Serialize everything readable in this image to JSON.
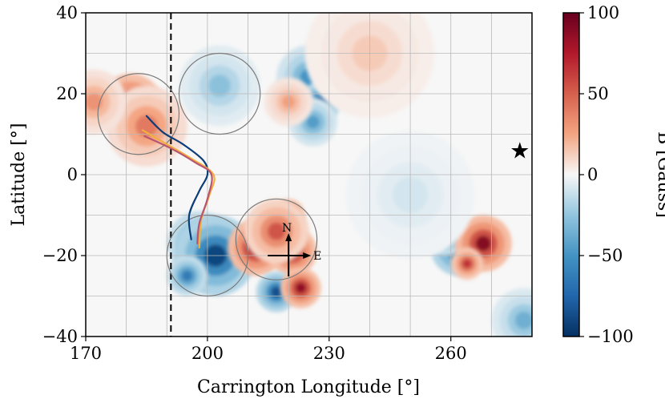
{
  "chart_data": {
    "type": "heatmap",
    "xlabel": "Carrington Longitude [°]",
    "ylabel": "Latitude [°]",
    "colorbar_label": "B [Gauss]",
    "xlim": [
      170,
      280
    ],
    "ylim": [
      -40,
      40
    ],
    "xticks": [
      170,
      200,
      230,
      260
    ],
    "yticks": [
      -40,
      -20,
      0,
      20,
      40
    ],
    "cbar_range": [
      -100,
      100
    ],
    "cbar_ticks": [
      -100,
      -50,
      0,
      50,
      100
    ],
    "x_tick_labels": [
      "170",
      "200",
      "230",
      "260"
    ],
    "y_tick_labels": [
      "−40",
      "−20",
      "0",
      "20",
      "40"
    ],
    "cbar_tick_labels": [
      "−100",
      "−50",
      "0",
      "50",
      "100"
    ],
    "grid": true,
    "colormap": "RdBu_r",
    "dashed_line_longitude": 191,
    "circles": [
      {
        "lon": 183,
        "lat": 15,
        "radius": 10
      },
      {
        "lon": 203,
        "lat": 20,
        "radius": 10
      },
      {
        "lon": 200,
        "lat": -20,
        "radius": 10
      },
      {
        "lon": 217,
        "lat": -16,
        "radius": 10
      }
    ],
    "field_regions": [
      {
        "lon": 181,
        "lat": 17,
        "B": 95,
        "size": 4
      },
      {
        "lon": 185,
        "lat": 12,
        "B": 45,
        "size": 5
      },
      {
        "lon": 172,
        "lat": 18,
        "B": 35,
        "size": 4
      },
      {
        "lon": 203,
        "lat": 22,
        "B": -30,
        "size": 5
      },
      {
        "lon": 225,
        "lat": 24,
        "B": -55,
        "size": 4
      },
      {
        "lon": 228,
        "lat": 18,
        "B": -95,
        "size": 2.5
      },
      {
        "lon": 226,
        "lat": 13,
        "B": -50,
        "size": 3
      },
      {
        "lon": 220,
        "lat": 18,
        "B": 30,
        "size": 3
      },
      {
        "lon": 198,
        "lat": -17,
        "B": -70,
        "size": 4
      },
      {
        "lon": 202,
        "lat": -20,
        "B": -100,
        "size": 5
      },
      {
        "lon": 195,
        "lat": -25,
        "B": -70,
        "size": 2.5
      },
      {
        "lon": 212,
        "lat": -18,
        "B": 100,
        "size": 3.5
      },
      {
        "lon": 220,
        "lat": -10,
        "B": 95,
        "size": 2
      },
      {
        "lon": 221,
        "lat": -19,
        "B": 95,
        "size": 3
      },
      {
        "lon": 217,
        "lat": -14,
        "B": 60,
        "size": 4
      },
      {
        "lon": 217,
        "lat": -29,
        "B": -95,
        "size": 2.5
      },
      {
        "lon": 223,
        "lat": -28,
        "B": 95,
        "size": 2.5
      },
      {
        "lon": 262,
        "lat": -18,
        "B": -100,
        "size": 3.5
      },
      {
        "lon": 259,
        "lat": -14,
        "B": -70,
        "size": 3
      },
      {
        "lon": 268,
        "lat": -17,
        "B": 100,
        "size": 3.5
      },
      {
        "lon": 264,
        "lat": -22,
        "B": 75,
        "size": 2
      },
      {
        "lon": 278,
        "lat": -36,
        "B": -40,
        "size": 4
      },
      {
        "lon": 240,
        "lat": 30,
        "B": 15,
        "size": 8
      },
      {
        "lon": 250,
        "lat": -5,
        "B": -10,
        "size": 8
      }
    ],
    "series": [
      {
        "color": "#0b3d78",
        "points": [
          [
            185,
            14.5
          ],
          [
            189,
            10.5
          ],
          [
            194,
            7.5
          ],
          [
            199,
            3.5
          ],
          [
            200,
            0
          ],
          [
            198,
            -4
          ],
          [
            195.5,
            -10
          ],
          [
            196,
            -16
          ]
        ]
      },
      {
        "color": "#f0b040",
        "points": [
          [
            184,
            11
          ],
          [
            190,
            7.5
          ],
          [
            196,
            4
          ],
          [
            201.5,
            0
          ],
          [
            200.5,
            -5
          ],
          [
            198.5,
            -11
          ],
          [
            198,
            -18
          ]
        ]
      },
      {
        "color": "#b85470",
        "points": [
          [
            184.5,
            9.5
          ],
          [
            191,
            6.5
          ],
          [
            197,
            3
          ],
          [
            201,
            0
          ],
          [
            200,
            -6
          ],
          [
            198,
            -12
          ],
          [
            197.5,
            -17
          ]
        ]
      }
    ],
    "compass": {
      "lon": 220,
      "lat": -20,
      "north_label": "N",
      "east_label": "E"
    },
    "marker": {
      "lon": 277,
      "lat": 6,
      "symbol": "★"
    }
  }
}
